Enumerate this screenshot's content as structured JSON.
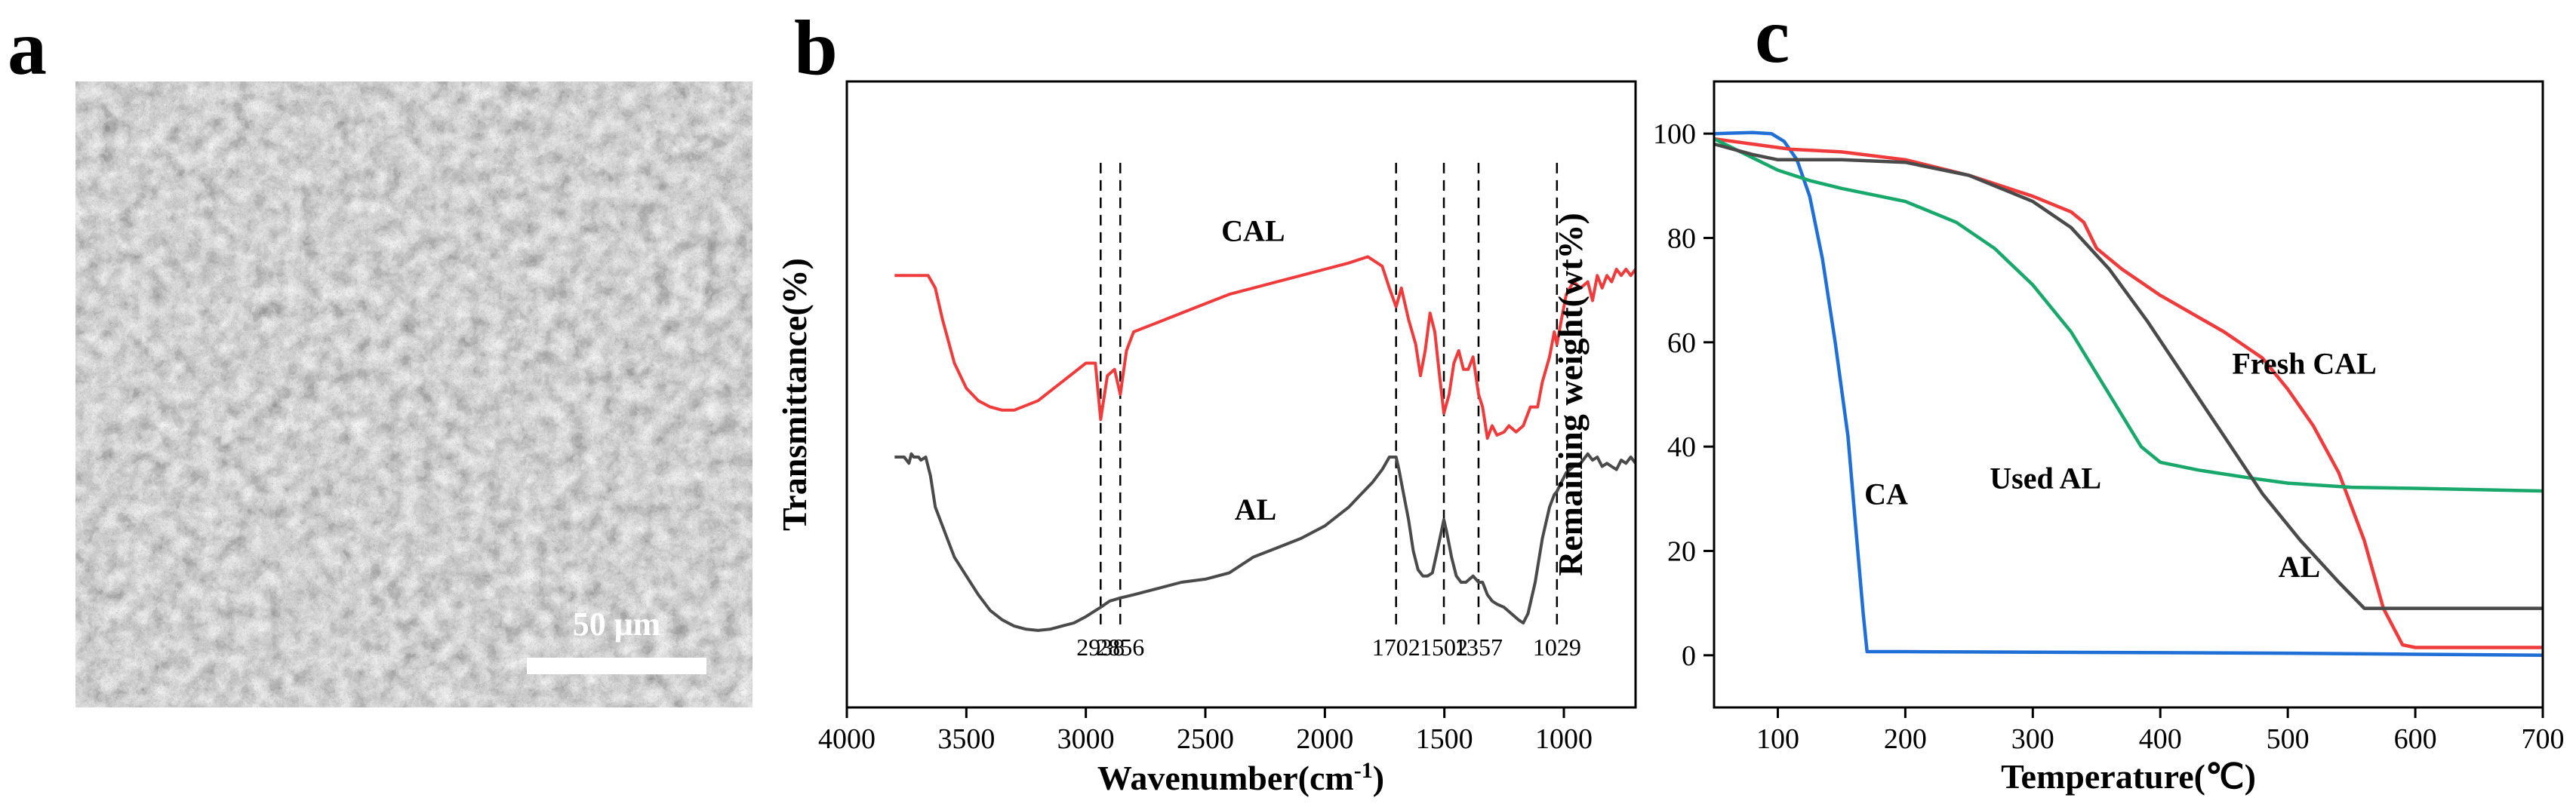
{
  "panel_labels": {
    "a": "a",
    "b": "b",
    "c": "c"
  },
  "sem": {
    "scale_bar_label": "50 μm"
  },
  "chart_data": [
    {
      "panel": "b",
      "type": "line",
      "xlabel_main": "Wavenumber(cm",
      "xlabel_sup": "-1",
      "xlabel_close": ")",
      "ylabel": "Transmittance(%)",
      "xlim": [
        4000,
        700
      ],
      "x_reversed": true,
      "xticks": [
        4000,
        3500,
        3000,
        2500,
        2000,
        1500,
        1000
      ],
      "y_ticks_shown": false,
      "peak_markers": [
        2938,
        2856,
        1702,
        1502,
        1357,
        1029
      ],
      "series": [
        {
          "name": "CAL",
          "color": "#ef3b3b",
          "points": [
            [
              3800,
              0.31
            ],
            [
              3700,
              0.31
            ],
            [
              3660,
              0.31
            ],
            [
              3630,
              0.33
            ],
            [
              3600,
              0.38
            ],
            [
              3550,
              0.45
            ],
            [
              3500,
              0.49
            ],
            [
              3450,
              0.51
            ],
            [
              3400,
              0.52
            ],
            [
              3350,
              0.525
            ],
            [
              3300,
              0.525
            ],
            [
              3200,
              0.51
            ],
            [
              3100,
              0.48
            ],
            [
              3000,
              0.45
            ],
            [
              2960,
              0.45
            ],
            [
              2938,
              0.54
            ],
            [
              2910,
              0.47
            ],
            [
              2880,
              0.46
            ],
            [
              2856,
              0.5
            ],
            [
              2830,
              0.43
            ],
            [
              2800,
              0.4
            ],
            [
              2700,
              0.385
            ],
            [
              2600,
              0.37
            ],
            [
              2500,
              0.355
            ],
            [
              2400,
              0.34
            ],
            [
              2300,
              0.33
            ],
            [
              2200,
              0.32
            ],
            [
              2100,
              0.31
            ],
            [
              2000,
              0.3
            ],
            [
              1900,
              0.29
            ],
            [
              1820,
              0.28
            ],
            [
              1760,
              0.295
            ],
            [
              1730,
              0.33
            ],
            [
              1702,
              0.36
            ],
            [
              1680,
              0.33
            ],
            [
              1650,
              0.38
            ],
            [
              1620,
              0.42
            ],
            [
              1600,
              0.47
            ],
            [
              1580,
              0.43
            ],
            [
              1560,
              0.37
            ],
            [
              1540,
              0.4
            ],
            [
              1520,
              0.47
            ],
            [
              1502,
              0.53
            ],
            [
              1480,
              0.5
            ],
            [
              1460,
              0.45
            ],
            [
              1440,
              0.43
            ],
            [
              1420,
              0.46
            ],
            [
              1400,
              0.46
            ],
            [
              1380,
              0.44
            ],
            [
              1357,
              0.5
            ],
            [
              1340,
              0.52
            ],
            [
              1320,
              0.57
            ],
            [
              1300,
              0.55
            ],
            [
              1280,
              0.565
            ],
            [
              1250,
              0.56
            ],
            [
              1230,
              0.55
            ],
            [
              1200,
              0.56
            ],
            [
              1170,
              0.55
            ],
            [
              1140,
              0.52
            ],
            [
              1110,
              0.52
            ],
            [
              1090,
              0.48
            ],
            [
              1060,
              0.44
            ],
            [
              1040,
              0.4
            ],
            [
              1029,
              0.42
            ],
            [
              1010,
              0.38
            ],
            [
              990,
              0.34
            ],
            [
              960,
              0.32
            ],
            [
              930,
              0.33
            ],
            [
              900,
              0.32
            ],
            [
              880,
              0.35
            ],
            [
              860,
              0.31
            ],
            [
              840,
              0.33
            ],
            [
              820,
              0.31
            ],
            [
              800,
              0.32
            ],
            [
              780,
              0.3
            ],
            [
              760,
              0.31
            ],
            [
              740,
              0.3
            ],
            [
              720,
              0.31
            ],
            [
              700,
              0.3
            ]
          ]
        },
        {
          "name": "AL",
          "color": "#4a4a4a",
          "points": [
            [
              3800,
              0.6
            ],
            [
              3760,
              0.6
            ],
            [
              3740,
              0.61
            ],
            [
              3730,
              0.595
            ],
            [
              3720,
              0.6
            ],
            [
              3700,
              0.6
            ],
            [
              3690,
              0.605
            ],
            [
              3670,
              0.6
            ],
            [
              3650,
              0.63
            ],
            [
              3630,
              0.68
            ],
            [
              3600,
              0.71
            ],
            [
              3580,
              0.73
            ],
            [
              3550,
              0.76
            ],
            [
              3500,
              0.79
            ],
            [
              3450,
              0.82
            ],
            [
              3400,
              0.845
            ],
            [
              3350,
              0.86
            ],
            [
              3300,
              0.87
            ],
            [
              3250,
              0.875
            ],
            [
              3200,
              0.877
            ],
            [
              3150,
              0.875
            ],
            [
              3100,
              0.87
            ],
            [
              3050,
              0.865
            ],
            [
              3000,
              0.855
            ],
            [
              2938,
              0.84
            ],
            [
              2900,
              0.83
            ],
            [
              2856,
              0.825
            ],
            [
              2800,
              0.82
            ],
            [
              2700,
              0.81
            ],
            [
              2600,
              0.8
            ],
            [
              2500,
              0.795
            ],
            [
              2400,
              0.785
            ],
            [
              2300,
              0.76
            ],
            [
              2200,
              0.745
            ],
            [
              2100,
              0.73
            ],
            [
              2000,
              0.71
            ],
            [
              1900,
              0.68
            ],
            [
              1850,
              0.66
            ],
            [
              1800,
              0.64
            ],
            [
              1760,
              0.62
            ],
            [
              1730,
              0.6
            ],
            [
              1702,
              0.6
            ],
            [
              1690,
              0.62
            ],
            [
              1670,
              0.66
            ],
            [
              1650,
              0.7
            ],
            [
              1630,
              0.75
            ],
            [
              1610,
              0.78
            ],
            [
              1590,
              0.79
            ],
            [
              1570,
              0.79
            ],
            [
              1550,
              0.785
            ],
            [
              1530,
              0.75
            ],
            [
              1502,
              0.7
            ],
            [
              1490,
              0.72
            ],
            [
              1470,
              0.76
            ],
            [
              1450,
              0.79
            ],
            [
              1430,
              0.8
            ],
            [
              1410,
              0.8
            ],
            [
              1380,
              0.79
            ],
            [
              1357,
              0.8
            ],
            [
              1340,
              0.8
            ],
            [
              1320,
              0.82
            ],
            [
              1300,
              0.83
            ],
            [
              1280,
              0.835
            ],
            [
              1250,
              0.84
            ],
            [
              1220,
              0.85
            ],
            [
              1190,
              0.86
            ],
            [
              1170,
              0.865
            ],
            [
              1150,
              0.85
            ],
            [
              1120,
              0.8
            ],
            [
              1090,
              0.73
            ],
            [
              1060,
              0.68
            ],
            [
              1040,
              0.66
            ],
            [
              1029,
              0.655
            ],
            [
              1010,
              0.64
            ],
            [
              990,
              0.625
            ],
            [
              960,
              0.615
            ],
            [
              930,
              0.61
            ],
            [
              900,
              0.595
            ],
            [
              880,
              0.605
            ],
            [
              860,
              0.6
            ],
            [
              840,
              0.615
            ],
            [
              820,
              0.61
            ],
            [
              800,
              0.615
            ],
            [
              780,
              0.62
            ],
            [
              760,
              0.605
            ],
            [
              740,
              0.61
            ],
            [
              720,
              0.6
            ],
            [
              700,
              0.61
            ]
          ]
        }
      ],
      "annotations": [
        {
          "text": "CAL",
          "x": 2300,
          "y": 0.255
        },
        {
          "text": "AL",
          "x": 2290,
          "y": 0.7
        }
      ]
    },
    {
      "panel": "c",
      "type": "line",
      "xlabel": "Temperature(℃)",
      "ylabel": "Remaining weight(wt%)",
      "xlim": [
        50,
        700
      ],
      "ylim": [
        -10,
        110
      ],
      "xticks": [
        100,
        200,
        300,
        400,
        500,
        600,
        700
      ],
      "yticks": [
        0,
        20,
        40,
        60,
        80,
        100
      ],
      "series": [
        {
          "name": "CA",
          "color": "#1f6fd6",
          "points": [
            [
              50,
              100
            ],
            [
              80,
              100.2
            ],
            [
              95,
              100
            ],
            [
              105,
              98.5
            ],
            [
              115,
              95
            ],
            [
              125,
              88
            ],
            [
              135,
              76
            ],
            [
              145,
              60
            ],
            [
              155,
              42
            ],
            [
              162,
              22
            ],
            [
              167,
              8
            ],
            [
              170,
              0.7
            ],
            [
              200,
              0.7
            ],
            [
              300,
              0.6
            ],
            [
              400,
              0.5
            ],
            [
              500,
              0.4
            ],
            [
              600,
              0.2
            ],
            [
              700,
              0
            ]
          ]
        },
        {
          "name": "Fresh CAL",
          "color": "#ef3b3b",
          "points": [
            [
              50,
              99
            ],
            [
              80,
              98
            ],
            [
              110,
              97
            ],
            [
              150,
              96.5
            ],
            [
              200,
              95
            ],
            [
              250,
              92
            ],
            [
              300,
              88
            ],
            [
              330,
              85
            ],
            [
              340,
              83
            ],
            [
              350,
              78
            ],
            [
              370,
              74
            ],
            [
              400,
              69
            ],
            [
              450,
              62
            ],
            [
              480,
              57
            ],
            [
              500,
              51
            ],
            [
              520,
              44
            ],
            [
              540,
              35
            ],
            [
              560,
              22
            ],
            [
              575,
              9
            ],
            [
              590,
              2
            ],
            [
              600,
              1.5
            ],
            [
              650,
              1.5
            ],
            [
              700,
              1.5
            ]
          ]
        },
        {
          "name": "Used AL",
          "color": "#18a86b",
          "points": [
            [
              50,
              99
            ],
            [
              75,
              96
            ],
            [
              100,
              93
            ],
            [
              125,
              91
            ],
            [
              150,
              89.5
            ],
            [
              200,
              87
            ],
            [
              240,
              83
            ],
            [
              270,
              78
            ],
            [
              300,
              71
            ],
            [
              330,
              62
            ],
            [
              360,
              50
            ],
            [
              385,
              40
            ],
            [
              400,
              37
            ],
            [
              430,
              35.5
            ],
            [
              470,
              34
            ],
            [
              500,
              33
            ],
            [
              550,
              32.2
            ],
            [
              600,
              32
            ],
            [
              700,
              31.5
            ]
          ]
        },
        {
          "name": "AL",
          "color": "#4a4a4a",
          "points": [
            [
              50,
              98
            ],
            [
              80,
              96
            ],
            [
              100,
              95
            ],
            [
              150,
              95
            ],
            [
              200,
              94.5
            ],
            [
              250,
              92
            ],
            [
              300,
              87
            ],
            [
              330,
              82
            ],
            [
              360,
              74
            ],
            [
              390,
              64
            ],
            [
              420,
              53
            ],
            [
              450,
              42
            ],
            [
              480,
              31
            ],
            [
              510,
              22
            ],
            [
              540,
              14
            ],
            [
              560,
              9
            ],
            [
              600,
              9
            ],
            [
              650,
              9
            ],
            [
              700,
              9
            ]
          ]
        }
      ],
      "annotations": [
        {
          "text": "CA",
          "x": 185,
          "y": 29
        },
        {
          "text": "Fresh CAL",
          "x": 513,
          "y": 54
        },
        {
          "text": "Used AL",
          "x": 310,
          "y": 32
        },
        {
          "text": "AL",
          "x": 509,
          "y": 15
        }
      ]
    }
  ]
}
